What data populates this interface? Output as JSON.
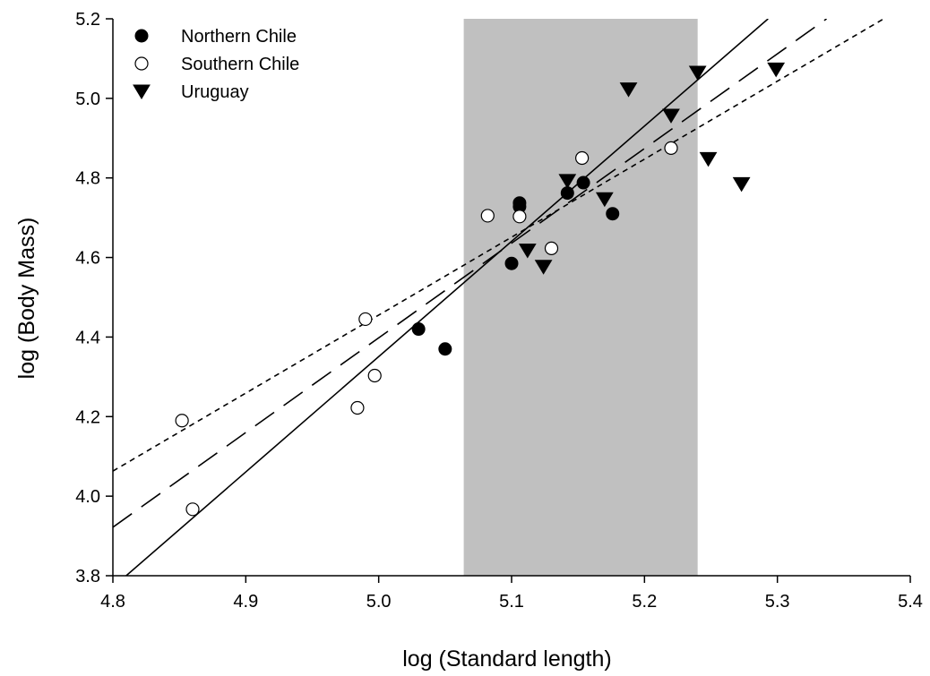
{
  "chart_data": {
    "type": "scatter",
    "xlabel": "log (Standard length)",
    "ylabel": "log (Body Mass)",
    "xlim": [
      4.8,
      5.4
    ],
    "ylim": [
      3.8,
      5.2
    ],
    "x_ticks": [
      "4.8",
      "4.9",
      "5.0",
      "5.1",
      "5.2",
      "5.3",
      "5.4"
    ],
    "y_ticks": [
      "3.8",
      "4.0",
      "4.2",
      "4.4",
      "4.6",
      "4.8",
      "5.0",
      "5.2"
    ],
    "grid": false,
    "legend_position": "top-left",
    "shaded_region": {
      "x_from": 5.064,
      "x_to": 5.24,
      "color": "#c0c0c0"
    },
    "series": [
      {
        "name": "Northern Chile",
        "marker": "filled-circle",
        "points": [
          [
            5.03,
            4.42
          ],
          [
            5.05,
            4.37
          ],
          [
            5.1,
            4.585
          ],
          [
            5.106,
            4.737
          ],
          [
            5.106,
            4.728
          ],
          [
            5.142,
            4.762
          ],
          [
            5.154,
            4.788
          ],
          [
            5.176,
            4.71
          ]
        ]
      },
      {
        "name": "Southern Chile",
        "marker": "open-circle",
        "points": [
          [
            4.852,
            4.19
          ],
          [
            4.86,
            3.967
          ],
          [
            4.984,
            4.222
          ],
          [
            4.99,
            4.445
          ],
          [
            4.997,
            4.303
          ],
          [
            5.082,
            4.705
          ],
          [
            5.106,
            4.703
          ],
          [
            5.13,
            4.623
          ],
          [
            5.153,
            4.85
          ],
          [
            5.22,
            4.875
          ]
        ]
      },
      {
        "name": "Uruguay",
        "marker": "filled-triangle-down",
        "points": [
          [
            5.112,
            4.618
          ],
          [
            5.124,
            4.577
          ],
          [
            5.142,
            4.793
          ],
          [
            5.17,
            4.747
          ],
          [
            5.188,
            5.023
          ],
          [
            5.22,
            4.957
          ],
          [
            5.24,
            5.065
          ],
          [
            5.248,
            4.848
          ],
          [
            5.273,
            4.785
          ],
          [
            5.299,
            5.073
          ]
        ]
      }
    ],
    "lines": [
      {
        "style": "solid",
        "from": [
          4.81,
          3.8
        ],
        "to": [
          5.293,
          5.2
        ]
      },
      {
        "style": "long-dash",
        "from": [
          4.8,
          3.922
        ],
        "to": [
          5.337,
          5.2
        ]
      },
      {
        "style": "short-dash",
        "from": [
          4.8,
          4.063
        ],
        "to": [
          5.38,
          5.2
        ]
      }
    ]
  }
}
